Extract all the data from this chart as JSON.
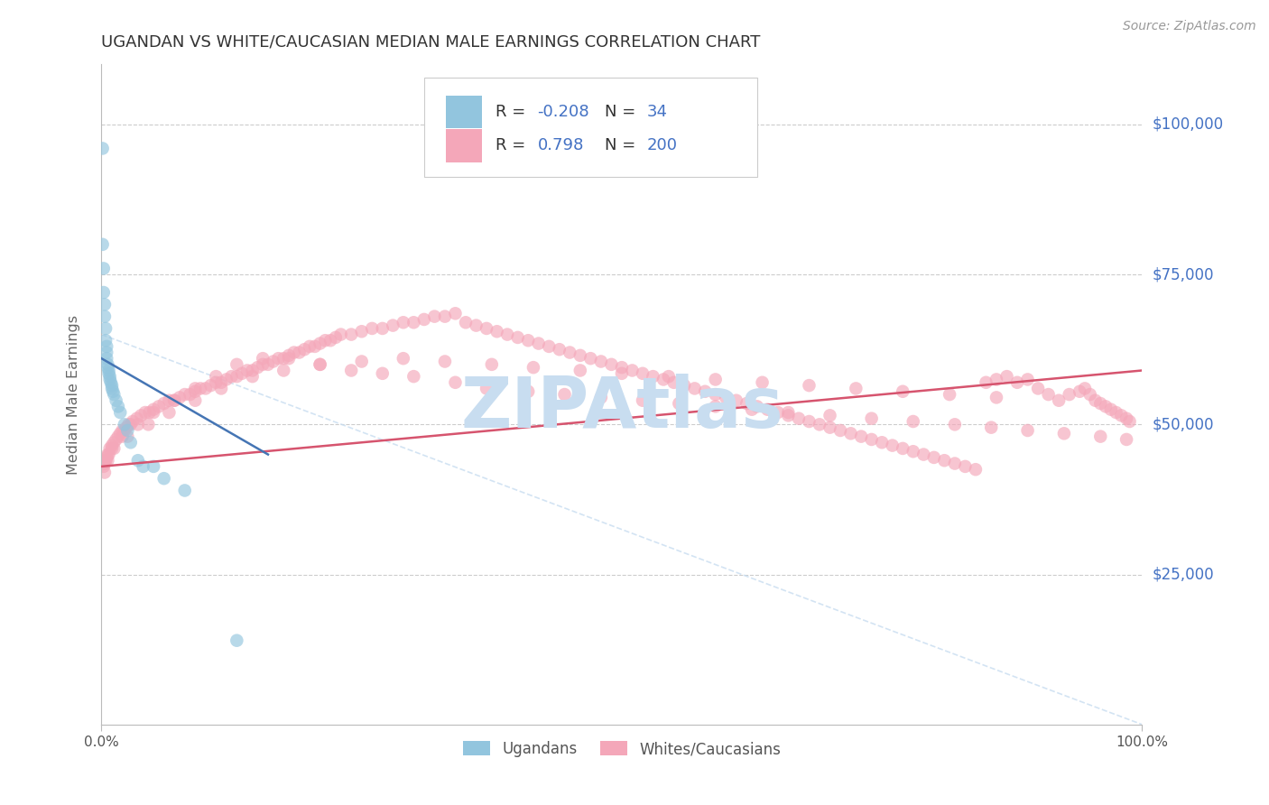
{
  "title": "UGANDAN VS WHITE/CAUCASIAN MEDIAN MALE EARNINGS CORRELATION CHART",
  "source": "Source: ZipAtlas.com",
  "ylabel": "Median Male Earnings",
  "xlim": [
    0.0,
    1.0
  ],
  "ylim": [
    0,
    110000
  ],
  "watermark": "ZIPAtlas",
  "ugandan_color": "#92c5de",
  "white_color": "#f4a7b9",
  "ugandan_line_color": "#4575b4",
  "white_line_color": "#d6546e",
  "background_color": "#ffffff",
  "title_color": "#333333",
  "axis_label_color": "#666666",
  "ytick_color": "#4472c4",
  "source_color": "#999999",
  "watermark_color": "#c8ddf0",
  "grid_color": "#cccccc",
  "legend_text_color": "#333333",
  "legend_num_color": "#4472c4",
  "ugandan_x": [
    0.001,
    0.001,
    0.002,
    0.002,
    0.003,
    0.003,
    0.004,
    0.004,
    0.005,
    0.005,
    0.005,
    0.006,
    0.006,
    0.007,
    0.007,
    0.008,
    0.008,
    0.009,
    0.01,
    0.01,
    0.011,
    0.012,
    0.014,
    0.016,
    0.018,
    0.022,
    0.025,
    0.028,
    0.035,
    0.04,
    0.05,
    0.06,
    0.08,
    0.13
  ],
  "ugandan_y": [
    96000,
    80000,
    76000,
    72000,
    70000,
    68000,
    66000,
    64000,
    63000,
    62000,
    61000,
    60000,
    59500,
    59000,
    58500,
    58000,
    57500,
    57000,
    56500,
    56000,
    55500,
    55000,
    54000,
    53000,
    52000,
    50000,
    49000,
    47000,
    44000,
    43000,
    43000,
    41000,
    39000,
    14000
  ],
  "white_x": [
    0.002,
    0.003,
    0.004,
    0.005,
    0.006,
    0.007,
    0.008,
    0.01,
    0.012,
    0.014,
    0.016,
    0.018,
    0.02,
    0.022,
    0.024,
    0.026,
    0.028,
    0.03,
    0.034,
    0.038,
    0.042,
    0.046,
    0.05,
    0.055,
    0.06,
    0.065,
    0.07,
    0.075,
    0.08,
    0.085,
    0.09,
    0.095,
    0.1,
    0.105,
    0.11,
    0.115,
    0.12,
    0.125,
    0.13,
    0.135,
    0.14,
    0.145,
    0.15,
    0.155,
    0.16,
    0.165,
    0.17,
    0.175,
    0.18,
    0.185,
    0.19,
    0.195,
    0.2,
    0.205,
    0.21,
    0.215,
    0.22,
    0.225,
    0.23,
    0.24,
    0.25,
    0.26,
    0.27,
    0.28,
    0.29,
    0.3,
    0.31,
    0.32,
    0.33,
    0.34,
    0.35,
    0.36,
    0.37,
    0.38,
    0.39,
    0.4,
    0.41,
    0.42,
    0.43,
    0.44,
    0.45,
    0.46,
    0.47,
    0.48,
    0.49,
    0.5,
    0.51,
    0.52,
    0.53,
    0.54,
    0.55,
    0.56,
    0.57,
    0.58,
    0.59,
    0.6,
    0.61,
    0.62,
    0.63,
    0.64,
    0.65,
    0.66,
    0.67,
    0.68,
    0.69,
    0.7,
    0.71,
    0.72,
    0.73,
    0.74,
    0.75,
    0.76,
    0.77,
    0.78,
    0.79,
    0.8,
    0.81,
    0.82,
    0.83,
    0.84,
    0.85,
    0.86,
    0.87,
    0.88,
    0.89,
    0.9,
    0.91,
    0.92,
    0.93,
    0.94,
    0.945,
    0.95,
    0.955,
    0.96,
    0.965,
    0.97,
    0.975,
    0.98,
    0.985,
    0.988,
    0.003,
    0.006,
    0.01,
    0.02,
    0.035,
    0.05,
    0.07,
    0.09,
    0.11,
    0.13,
    0.155,
    0.18,
    0.21,
    0.24,
    0.27,
    0.3,
    0.34,
    0.37,
    0.41,
    0.445,
    0.48,
    0.52,
    0.555,
    0.59,
    0.625,
    0.66,
    0.7,
    0.74,
    0.78,
    0.82,
    0.855,
    0.89,
    0.925,
    0.96,
    0.985,
    0.004,
    0.012,
    0.025,
    0.045,
    0.065,
    0.09,
    0.115,
    0.145,
    0.175,
    0.21,
    0.25,
    0.29,
    0.33,
    0.375,
    0.415,
    0.46,
    0.5,
    0.545,
    0.59,
    0.635,
    0.68,
    0.725,
    0.77,
    0.815,
    0.86
  ],
  "white_y": [
    43000,
    43500,
    44000,
    44500,
    45000,
    45000,
    46000,
    46500,
    47000,
    47500,
    48000,
    48500,
    49000,
    49000,
    49500,
    50000,
    50000,
    50500,
    51000,
    51500,
    52000,
    52000,
    52500,
    53000,
    53500,
    54000,
    54000,
    54500,
    55000,
    55000,
    55500,
    56000,
    56000,
    56500,
    57000,
    57000,
    57500,
    58000,
    58000,
    58500,
    59000,
    59000,
    59500,
    60000,
    60000,
    60500,
    61000,
    61000,
    61500,
    62000,
    62000,
    62500,
    63000,
    63000,
    63500,
    64000,
    64000,
    64500,
    65000,
    65000,
    65500,
    66000,
    66000,
    66500,
    67000,
    67000,
    67500,
    68000,
    68000,
    68500,
    67000,
    66500,
    66000,
    65500,
    65000,
    64500,
    64000,
    63500,
    63000,
    62500,
    62000,
    61500,
    61000,
    60500,
    60000,
    59500,
    59000,
    58500,
    58000,
    57500,
    57000,
    56500,
    56000,
    55500,
    55000,
    54500,
    54000,
    53500,
    53000,
    52500,
    52000,
    51500,
    51000,
    50500,
    50000,
    49500,
    49000,
    48500,
    48000,
    47500,
    47000,
    46500,
    46000,
    45500,
    45000,
    44500,
    44000,
    43500,
    43000,
    42500,
    57000,
    57500,
    58000,
    57000,
    57500,
    56000,
    55000,
    54000,
    55000,
    55500,
    56000,
    55000,
    54000,
    53500,
    53000,
    52500,
    52000,
    51500,
    51000,
    50500,
    42000,
    44000,
    46000,
    48000,
    50000,
    52000,
    54000,
    56000,
    58000,
    60000,
    61000,
    61000,
    60000,
    59000,
    58500,
    58000,
    57000,
    56000,
    55500,
    55000,
    54500,
    54000,
    53500,
    53000,
    52500,
    52000,
    51500,
    51000,
    50500,
    50000,
    49500,
    49000,
    48500,
    48000,
    47500,
    44000,
    46000,
    48000,
    50000,
    52000,
    54000,
    56000,
    58000,
    59000,
    60000,
    60500,
    61000,
    60500,
    60000,
    59500,
    59000,
    58500,
    58000,
    57500,
    57000,
    56500,
    56000,
    55500,
    55000,
    54500
  ]
}
